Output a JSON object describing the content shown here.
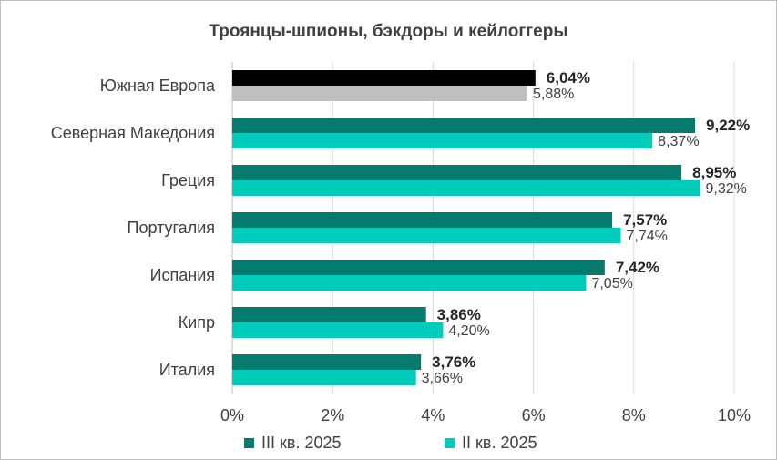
{
  "chart_data": {
    "type": "bar",
    "orientation": "horizontal",
    "title": "Троянцы-шпионы, бэкдоры и кейлоггеры",
    "categories": [
      "Южная Европа",
      "Северная Македония",
      "Греция",
      "Португалия",
      "Испания",
      "Кипр",
      "Италия"
    ],
    "series": [
      {
        "name": "III кв. 2025",
        "values": [
          6.04,
          9.22,
          8.95,
          7.57,
          7.42,
          3.86,
          3.76
        ],
        "labels": [
          "6,04%",
          "9,22%",
          "8,95%",
          "7,57%",
          "7,42%",
          "3,86%",
          "3,76%"
        ]
      },
      {
        "name": "II кв. 2025",
        "values": [
          5.88,
          8.37,
          9.32,
          7.74,
          7.05,
          4.2,
          3.66
        ],
        "labels": [
          "5,88%",
          "8,37%",
          "9,32%",
          "7,74%",
          "7,05%",
          "4,20%",
          "3,66%"
        ]
      }
    ],
    "highlight_category": "Южная Европа",
    "xlim": [
      0,
      10
    ],
    "xticks": [
      "0%",
      "2%",
      "4%",
      "6%",
      "8%",
      "10%"
    ],
    "xtick_values": [
      0,
      2,
      4,
      6,
      8,
      10
    ],
    "grid": "vertical",
    "legend": "bottom"
  },
  "colors": {
    "series1": "#047b6d",
    "series2": "#00ccbb",
    "highlight1": "#000000",
    "highlight2": "#bfbfbf",
    "grid": "#d9d9d9"
  }
}
